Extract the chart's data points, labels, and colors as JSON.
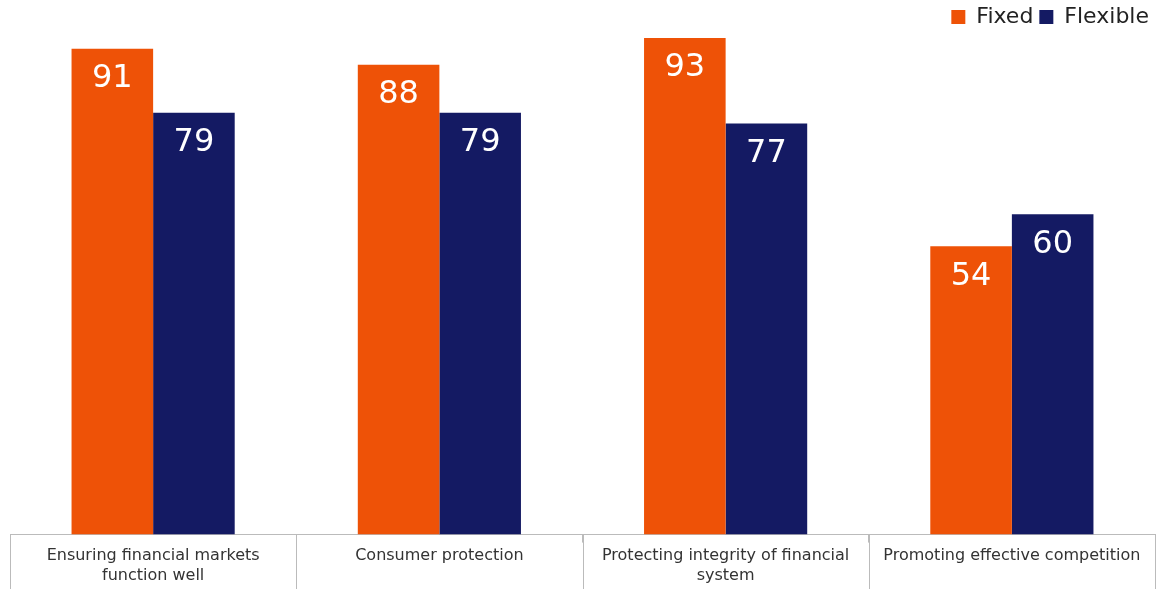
{
  "chart_data": {
    "type": "bar",
    "categories": [
      "Ensuring financial markets function well",
      "Consumer protection",
      "Protecting integrity of financial system",
      "Promoting effective competition"
    ],
    "series": [
      {
        "name": "Fixed",
        "color": "#ee5207",
        "values": [
          91,
          88,
          93,
          54
        ]
      },
      {
        "name": "Flexible",
        "color": "#141a63",
        "values": [
          79,
          79,
          77,
          60
        ]
      }
    ],
    "ylim": [
      0,
      93
    ],
    "data_labels": true,
    "legend": "top right",
    "grid": false
  }
}
